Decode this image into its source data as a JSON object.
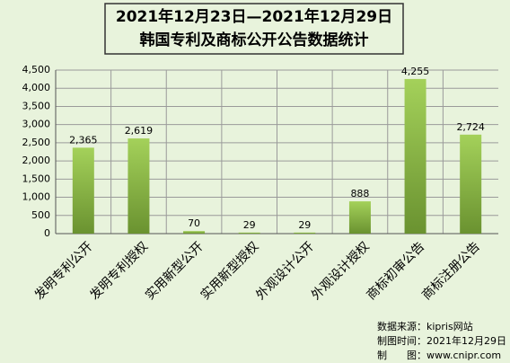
{
  "chart_data": {
    "type": "bar",
    "title": "2021年12月23日—2021年12月29日",
    "subtitle": "韩国专利及商标公开公告数据统计",
    "categories": [
      "发明专利公开",
      "发明专利授权",
      "实用新型公开",
      "实用新型授权",
      "外观设计公开",
      "外观设计授权",
      "商标初审公告",
      "商标注册公告"
    ],
    "values": [
      2365,
      2619,
      70,
      29,
      29,
      888,
      4255,
      2724
    ],
    "value_labels": [
      "2,365",
      "2,619",
      "70",
      "29",
      "29",
      "888",
      "4,255",
      "2,724"
    ],
    "color": "#8bb83f",
    "ylim": [
      0,
      4500
    ],
    "yticks": [
      0,
      500,
      {
        "value": 1000,
        "label": "1,000"
      },
      {
        "value": 1500,
        "label": "1,500"
      },
      {
        "value": 2000,
        "label": "2,000"
      },
      {
        "value": 2500,
        "label": "2,500"
      },
      {
        "value": 3000,
        "label": "3,000"
      },
      {
        "value": 3500,
        "label": "3,500"
      },
      {
        "value": 4000,
        "label": "4,000"
      },
      {
        "value": 4500,
        "label": "4,500"
      }
    ],
    "grid": true,
    "annotations": [
      "数据来源：kipris网站",
      "制图时间：2021年12月29日",
      "制　　图：www.cnipr.com"
    ]
  }
}
